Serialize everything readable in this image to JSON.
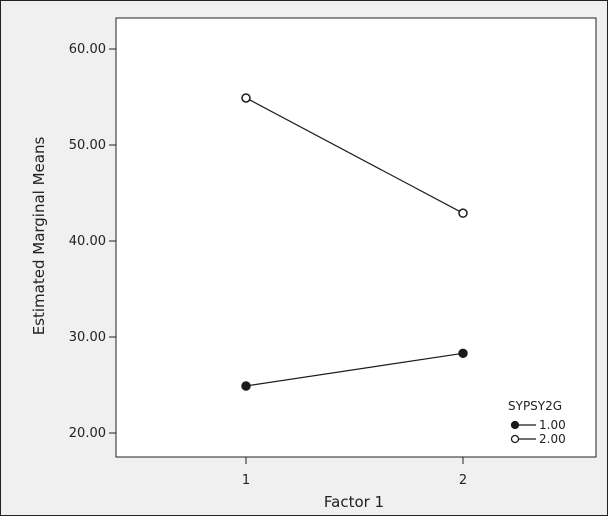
{
  "chart_data": {
    "type": "line",
    "xlabel": "Factor 1",
    "ylabel": "Estimated Marginal Means",
    "categories": [
      "1",
      "2"
    ],
    "ylim": [
      18,
      62
    ],
    "yticks": [
      20,
      30,
      40,
      50,
      60
    ],
    "ytick_labels": [
      "20.00",
      "30.00",
      "40.00",
      "50.00",
      "60.00"
    ],
    "grid": false,
    "legend": {
      "title": "SYPSY2G",
      "placement": "bottom-right"
    },
    "series": [
      {
        "name": "1.00",
        "marker": "filled-circle",
        "values": [
          24.9,
          28.3
        ]
      },
      {
        "name": "2.00",
        "marker": "open-circle",
        "values": [
          54.9,
          42.9
        ]
      }
    ],
    "colors": {
      "line": "#1a1a1a",
      "background": "#f0f0f0",
      "plot_background": "#ffffff"
    }
  }
}
